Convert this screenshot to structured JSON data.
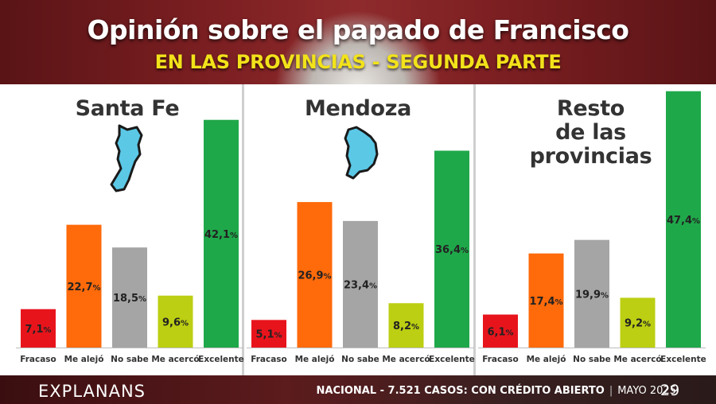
{
  "header": {
    "title": "Opinión sobre el papado de Francisco",
    "subtitle": "EN LAS PROVINCIAS - SEGUNDA PARTE"
  },
  "chart_data": [
    {
      "type": "bar",
      "title": "Santa Fe",
      "categories": [
        "Fracaso",
        "Me alejó",
        "No sabe",
        "Me acercó",
        "Excelente"
      ],
      "values": [
        7.1,
        22.7,
        18.5,
        9.6,
        42.1
      ],
      "labels": [
        "7,1",
        "22,7",
        "18,5",
        "9,6",
        "42,1"
      ],
      "unit": "%",
      "colors": [
        "#e8141c",
        "#ff6a0a",
        "#a5a5a5",
        "#bccf12",
        "#1fa84a"
      ],
      "map_icon": "santa-fe-map-icon"
    },
    {
      "type": "bar",
      "title": "Mendoza",
      "categories": [
        "Fracaso",
        "Me alejó",
        "No sabe",
        "Me acercó",
        "Excelente"
      ],
      "values": [
        5.1,
        26.9,
        23.4,
        8.2,
        36.4
      ],
      "labels": [
        "5,1",
        "26,9",
        "23,4",
        "8,2",
        "36,4"
      ],
      "unit": "%",
      "colors": [
        "#e8141c",
        "#ff6a0a",
        "#a5a5a5",
        "#bccf12",
        "#1fa84a"
      ],
      "map_icon": "mendoza-map-icon"
    },
    {
      "type": "bar",
      "title": "Resto de las provincias",
      "title_lines": [
        "Resto",
        "de las",
        "provincias"
      ],
      "categories": [
        "Fracaso",
        "Me alejó",
        "No sabe",
        "Me acercó",
        "Excelente"
      ],
      "values": [
        6.1,
        17.4,
        19.9,
        9.2,
        47.4
      ],
      "labels": [
        "6,1",
        "17,4",
        "19,9",
        "9,2",
        "47,4"
      ],
      "unit": "%",
      "colors": [
        "#e8141c",
        "#ff6a0a",
        "#a5a5a5",
        "#bccf12",
        "#1fa84a"
      ]
    }
  ],
  "footer": {
    "brand": "EXPLANANS",
    "survey": "NACIONAL - 7.521 CASOS: CON CRÉDITO ABIERTO",
    "date": "MAYO 2025",
    "page": "29"
  }
}
